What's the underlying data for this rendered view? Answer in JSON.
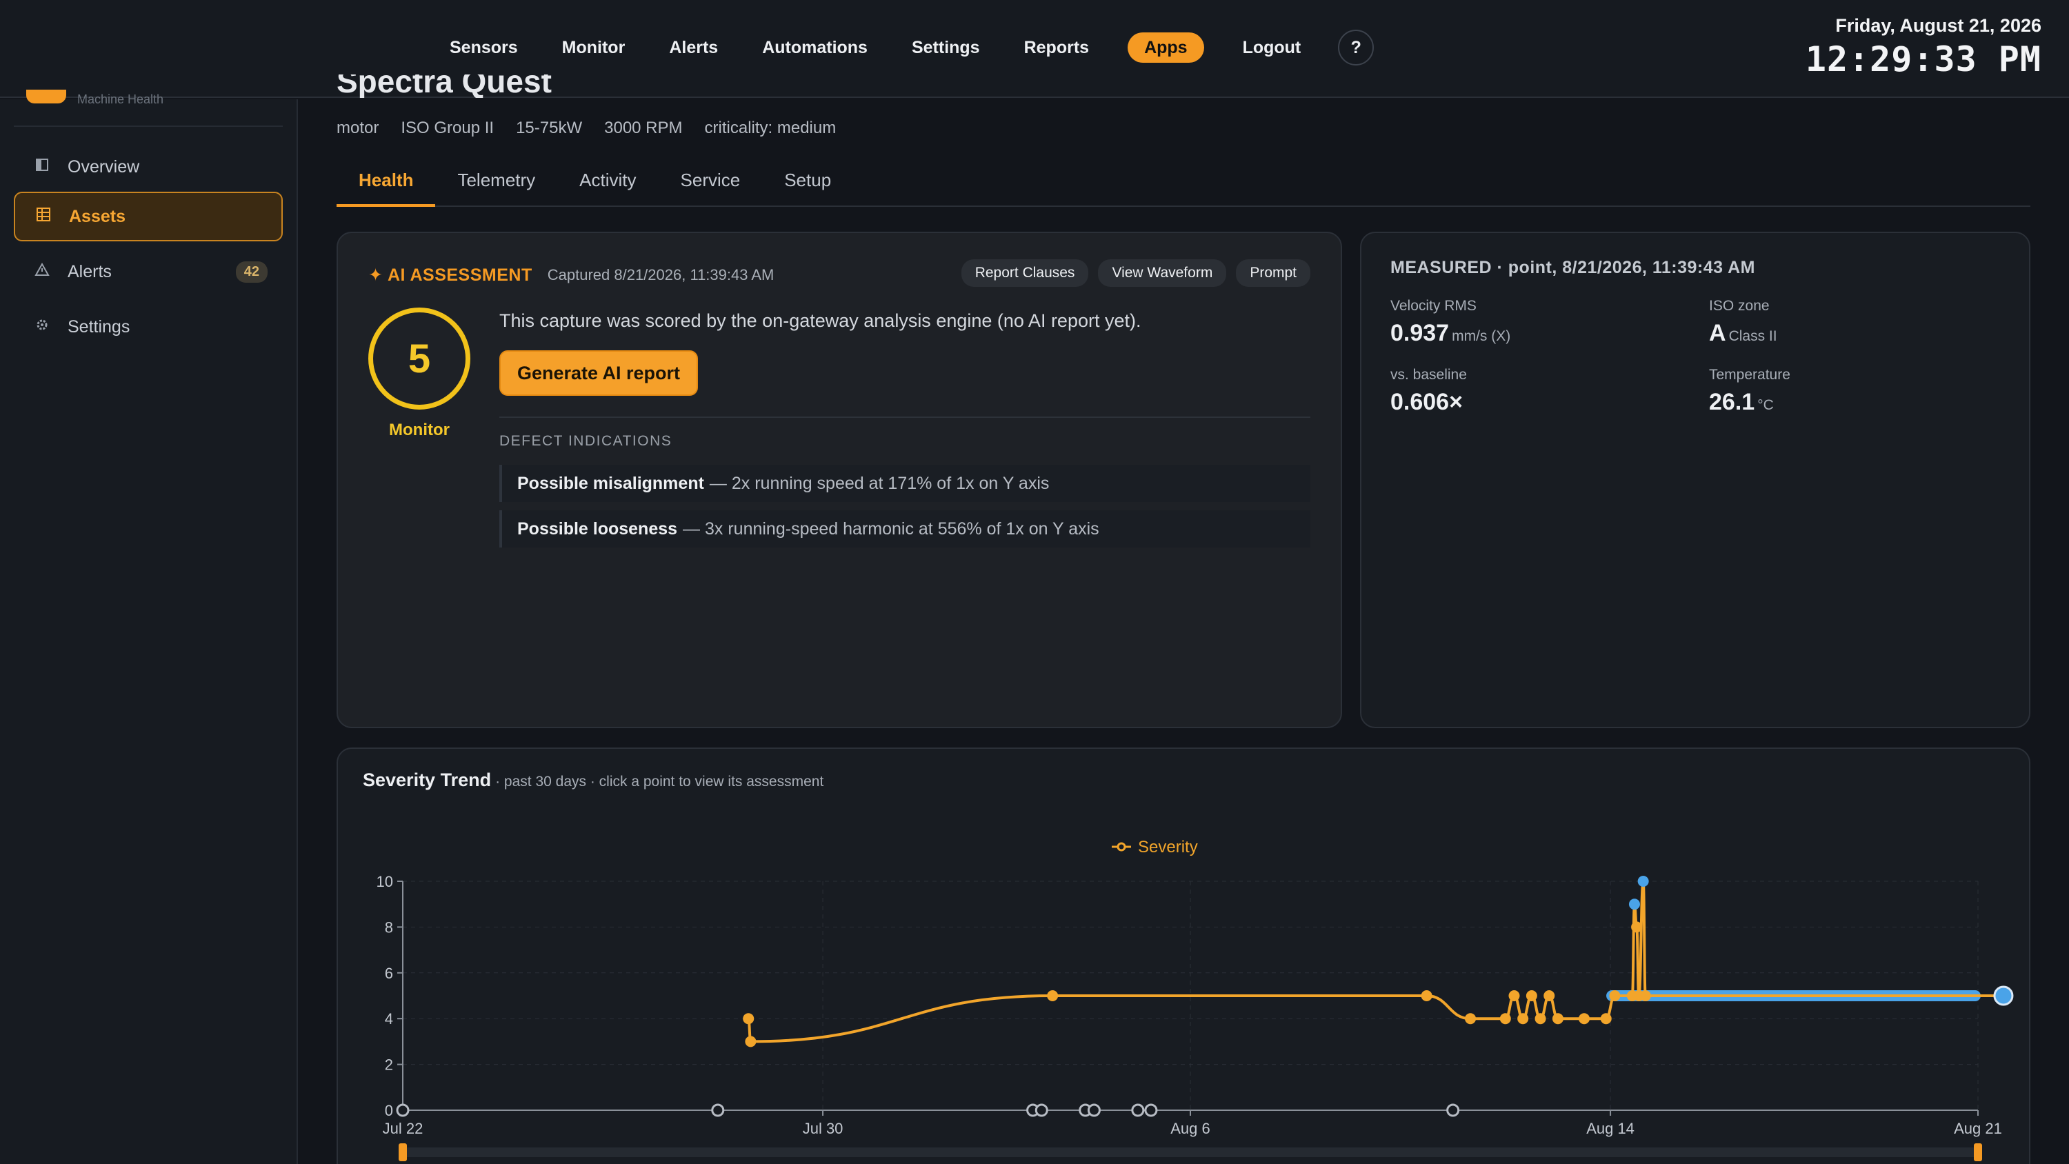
{
  "nav": {
    "items": [
      "Sensors",
      "Monitor",
      "Alerts",
      "Automations",
      "Settings",
      "Reports",
      "Apps",
      "Logout"
    ],
    "active": "Apps",
    "help_label": "?"
  },
  "clock": {
    "date": "Friday, August 21, 2026",
    "time": "12:29:33 PM"
  },
  "sidebar": {
    "brand_text": "Machine Health",
    "items": [
      {
        "label": "Overview",
        "icon": "panel-icon"
      },
      {
        "label": "Assets",
        "icon": "grid-icon",
        "active": true
      },
      {
        "label": "Alerts",
        "icon": "warning-icon",
        "badge": "42"
      },
      {
        "label": "Settings",
        "icon": "gear-icon"
      }
    ]
  },
  "asset": {
    "title": "Spectra Quest",
    "meta": [
      "motor",
      "ISO Group II",
      "15-75kW",
      "3000 RPM",
      "criticality: medium"
    ]
  },
  "tabs": [
    "Health",
    "Telemetry",
    "Activity",
    "Service",
    "Setup"
  ],
  "ai": {
    "label": "✦ AI ASSESSMENT",
    "captured": "Captured 8/21/2026, 11:39:43 AM",
    "actions": [
      "Report Clauses",
      "View Waveform",
      "Prompt"
    ],
    "severity": "5",
    "severity_label": "Monitor",
    "message": "This capture was scored by the on-gateway analysis engine (no AI report yet).",
    "generate_label": "Generate AI report",
    "defect_heading": "DEFECT INDICATIONS",
    "defects": [
      {
        "title": "Possible misalignment",
        "detail": "— 2x running speed at 171% of 1x on Y axis"
      },
      {
        "title": "Possible looseness",
        "detail": "— 3x running-speed harmonic at 556% of 1x on Y axis"
      }
    ]
  },
  "measured": {
    "heading": "MEASURED · point, 8/21/2026, 11:39:43 AM",
    "velocity_label": "Velocity RMS",
    "velocity_value": "0.937",
    "velocity_unit": "mm/s (X)",
    "iso_label": "ISO zone",
    "iso_value": "A",
    "iso_class": "Class II",
    "baseline_label": "vs. baseline",
    "baseline_value": "0.606×",
    "temp_label": "Temperature",
    "temp_value": "26.1",
    "temp_unit": "°C"
  },
  "trend": {
    "title": "Severity Trend",
    "subtitle": "· past 30 days · click a point to view its assessment"
  },
  "colors": {
    "accent": "#f59a23",
    "severity": "#f5c82a",
    "series": "#f2a52b",
    "selected": "#4aa3e8",
    "panel": "#1e2126"
  },
  "chart_data": {
    "type": "line",
    "legend": [
      "Severity"
    ],
    "legend_position": "top-center",
    "ylim": [
      0,
      10
    ],
    "yticks": [
      "0",
      "2",
      "4",
      "6",
      "8",
      "10"
    ],
    "xlim": [
      "2026-07-22",
      "2026-08-21"
    ],
    "xticks": [
      "Jul 22",
      "Jul 30",
      "Aug 6",
      "Aug 14",
      "Aug 21"
    ],
    "grid": true,
    "series": [
      {
        "name": "Severity",
        "points": [
          [
            "2026-07-28 14:00",
            4
          ],
          [
            "2026-07-28 15:00",
            3
          ],
          [
            "2026-08-03 09:00",
            5
          ],
          [
            "2026-08-10 12:00",
            5
          ],
          [
            "2026-08-11 08:00",
            4
          ],
          [
            "2026-08-12 00:00",
            4
          ],
          [
            "2026-08-12 04:00",
            5
          ],
          [
            "2026-08-12 08:00",
            4
          ],
          [
            "2026-08-12 12:00",
            5
          ],
          [
            "2026-08-12 16:00",
            4
          ],
          [
            "2026-08-12 20:00",
            5
          ],
          [
            "2026-08-13 00:00",
            4
          ],
          [
            "2026-08-13 12:00",
            4
          ],
          [
            "2026-08-13 22:00",
            4
          ],
          [
            "2026-08-14 02:00",
            5
          ],
          [
            "2026-08-14 10:00",
            5
          ],
          [
            "2026-08-14 11:00",
            9
          ],
          [
            "2026-08-14 12:00",
            8
          ],
          [
            "2026-08-14 13:00",
            5
          ],
          [
            "2026-08-14 15:00",
            10
          ],
          [
            "2026-08-14 16:00",
            5
          ],
          [
            "2026-08-21 11:39",
            5
          ]
        ]
      }
    ],
    "zero_markers": [
      "2026-07-22",
      "2026-07-28",
      "2026-08-03",
      "2026-08-03 04:00",
      "2026-08-04",
      "2026-08-04 04:00",
      "2026-08-05",
      "2026-08-05 06:00",
      "2026-08-11"
    ],
    "selected_point": [
      "2026-08-21 11:39",
      5
    ],
    "highlighted_range": [
      "2026-08-14",
      "2026-08-21"
    ]
  }
}
